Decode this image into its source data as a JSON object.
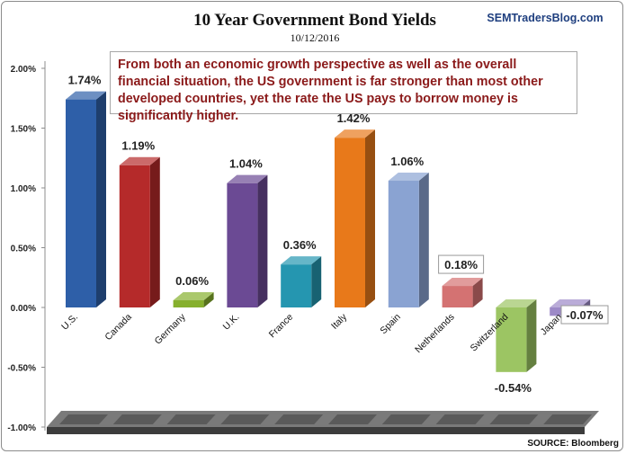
{
  "chart_data": {
    "type": "bar",
    "title": "10 Year Government Bond Yields",
    "subtitle": "10/12/2016",
    "brand": "SEMTradersBlog.com",
    "source": "SOURCE: Bloomberg",
    "annotation": "From both an economic growth perspective as well as the overall financial situation, the US government is far stronger than most other developed countries, yet the rate the US pays to borrow money is significantly higher.",
    "categories": [
      "U.S.",
      "Canada",
      "Germany",
      "U.K.",
      "France",
      "Italy",
      "Spain",
      "Netherlands",
      "Switzerland",
      "Japan"
    ],
    "values": [
      1.74,
      1.19,
      0.06,
      1.04,
      0.36,
      1.42,
      1.06,
      0.18,
      -0.54,
      -0.07
    ],
    "value_labels": [
      "1.74%",
      "1.19%",
      "0.06%",
      "1.04%",
      "0.36%",
      "1.42%",
      "1.06%",
      "0.18%",
      "-0.54%",
      "-0.07%"
    ],
    "colors": [
      "#2e5fa8",
      "#b52a2a",
      "#86b02d",
      "#6b4a94",
      "#2596b0",
      "#e8791a",
      "#8aa3d2",
      "#d47272",
      "#9cc563",
      "#9c89c7"
    ],
    "yticks": [
      "2.00%",
      "1.50%",
      "1.00%",
      "0.50%",
      "0.00%",
      "-0.50%",
      "-1.00%"
    ],
    "ylim": [
      -1.0,
      2.0
    ],
    "grid": false
  }
}
